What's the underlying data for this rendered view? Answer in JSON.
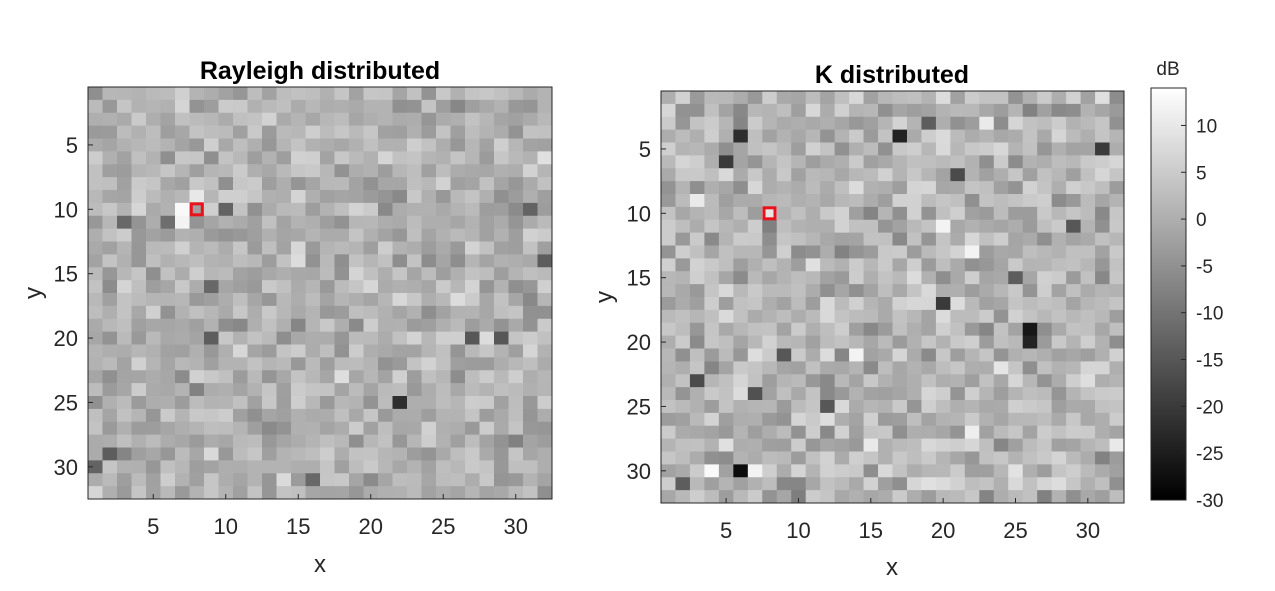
{
  "chart_data": [
    {
      "type": "heatmap",
      "title": "Rayleigh distributed",
      "xlabel": "x",
      "ylabel": "y",
      "xlim": [
        0.5,
        32.5
      ],
      "ylim": [
        0.5,
        32.5
      ],
      "y_reversed": true,
      "grid_size": [
        32,
        32
      ],
      "xticks": [
        5,
        10,
        15,
        20,
        25,
        30
      ],
      "yticks": [
        5,
        10,
        15,
        20,
        25,
        30
      ],
      "value_range_db": [
        -30,
        14
      ],
      "typical_range_db": [
        -9,
        10
      ],
      "dark_cells": [
        {
          "x": 22,
          "y": 25,
          "value": -22
        },
        {
          "x": 2,
          "y": 29,
          "value": -14
        },
        {
          "x": 1,
          "y": 30,
          "value": -13
        },
        {
          "x": 32,
          "y": 14,
          "value": -14
        },
        {
          "x": 9,
          "y": 20,
          "value": -14
        },
        {
          "x": 27,
          "y": 20,
          "value": -15
        },
        {
          "x": 29,
          "y": 20,
          "value": -15
        },
        {
          "x": 10,
          "y": 10,
          "value": -13
        },
        {
          "x": 3,
          "y": 11,
          "value": -12
        },
        {
          "x": 9,
          "y": 16,
          "value": -12
        },
        {
          "x": 31,
          "y": 10,
          "value": -13
        },
        {
          "x": 16,
          "y": 31,
          "value": -12
        },
        {
          "x": 6,
          "y": 11,
          "value": -11
        }
      ],
      "bright_cells": [
        {
          "x": 7,
          "y": 10,
          "value": 13
        },
        {
          "x": 7,
          "y": 11,
          "value": 12
        },
        {
          "x": 8,
          "y": 9,
          "value": 10
        }
      ],
      "highlight": {
        "x": 8,
        "y": 10,
        "color": "#e8121a"
      }
    },
    {
      "type": "heatmap",
      "title": "K distributed",
      "xlabel": "x",
      "ylabel": "y",
      "xlim": [
        0.5,
        32.5
      ],
      "ylim": [
        0.5,
        32.5
      ],
      "y_reversed": true,
      "grid_size": [
        32,
        32
      ],
      "xticks": [
        5,
        10,
        15,
        20,
        25,
        30
      ],
      "yticks": [
        5,
        10,
        15,
        20,
        25,
        30
      ],
      "value_range_db": [
        -30,
        14
      ],
      "typical_range_db": [
        -10,
        12
      ],
      "dark_cells": [
        {
          "x": 6,
          "y": 30,
          "value": -28
        },
        {
          "x": 26,
          "y": 19,
          "value": -26
        },
        {
          "x": 26,
          "y": 20,
          "value": -24
        },
        {
          "x": 17,
          "y": 4,
          "value": -24
        },
        {
          "x": 6,
          "y": 4,
          "value": -22
        },
        {
          "x": 5,
          "y": 6,
          "value": -20
        },
        {
          "x": 31,
          "y": 5,
          "value": -20
        },
        {
          "x": 20,
          "y": 17,
          "value": -20
        },
        {
          "x": 21,
          "y": 7,
          "value": -17
        },
        {
          "x": 3,
          "y": 23,
          "value": -17
        },
        {
          "x": 7,
          "y": 24,
          "value": -16
        },
        {
          "x": 12,
          "y": 25,
          "value": -15
        },
        {
          "x": 9,
          "y": 21,
          "value": -15
        },
        {
          "x": 29,
          "y": 11,
          "value": -15
        },
        {
          "x": 25,
          "y": 15,
          "value": -14
        },
        {
          "x": 2,
          "y": 31,
          "value": -14
        },
        {
          "x": 19,
          "y": 3,
          "value": -14
        }
      ],
      "bright_cells": [
        {
          "x": 4,
          "y": 30,
          "value": 13
        },
        {
          "x": 20,
          "y": 11,
          "value": 12
        },
        {
          "x": 14,
          "y": 21,
          "value": 12
        },
        {
          "x": 22,
          "y": 13,
          "value": 12
        },
        {
          "x": 7,
          "y": 30,
          "value": 12
        }
      ],
      "highlight": {
        "x": 8,
        "y": 10,
        "color": "#e8121a"
      }
    }
  ],
  "colorbar": {
    "label": "dB",
    "min": -30,
    "max": 14,
    "ticks": [
      10,
      5,
      0,
      -5,
      -10,
      -15,
      -20,
      -25,
      -30
    ],
    "colormap": "gray"
  }
}
